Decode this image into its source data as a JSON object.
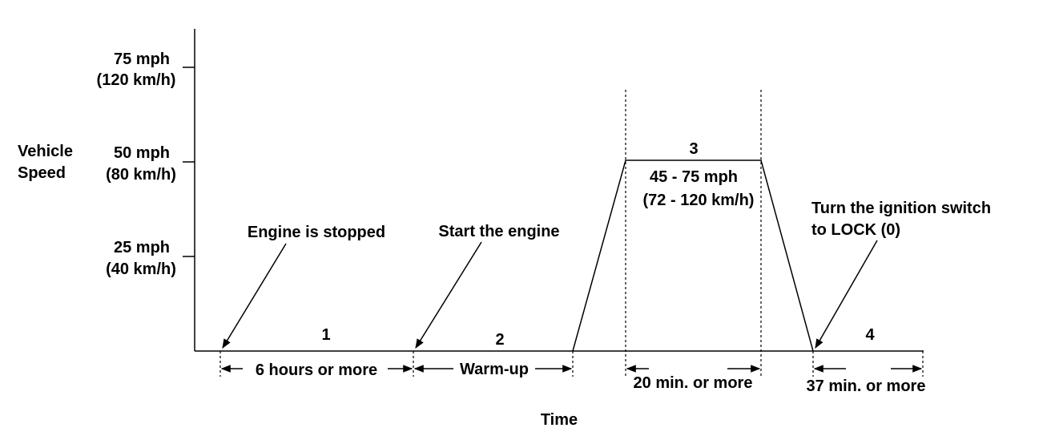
{
  "y_axis": {
    "label_lines": [
      "Vehicle",
      "Speed"
    ],
    "ticks": [
      {
        "mph": "75 mph",
        "kmh": "(120 km/h)"
      },
      {
        "mph": "50 mph",
        "kmh": "(80 km/h)"
      },
      {
        "mph": "25 mph",
        "kmh": "(40 km/h)"
      }
    ]
  },
  "x_axis": {
    "label": "Time"
  },
  "phases": {
    "p1": {
      "number": "1",
      "duration": "6 hours or more"
    },
    "p2": {
      "number": "2",
      "duration": "Warm-up"
    },
    "p3": {
      "number": "3",
      "speed_mph": "45 - 75 mph",
      "speed_kmh": "(72 - 120 km/h)",
      "duration": "20 min. or more"
    },
    "p4": {
      "number": "4",
      "duration": "37 min. or more"
    }
  },
  "callouts": {
    "engine_stopped": "Engine is stopped",
    "start_engine": "Start the engine",
    "ignition_line1": "Turn the ignition switch",
    "ignition_line2": "to LOCK (0)"
  },
  "colors": {
    "ink": "#000000",
    "background": "#ffffff"
  }
}
